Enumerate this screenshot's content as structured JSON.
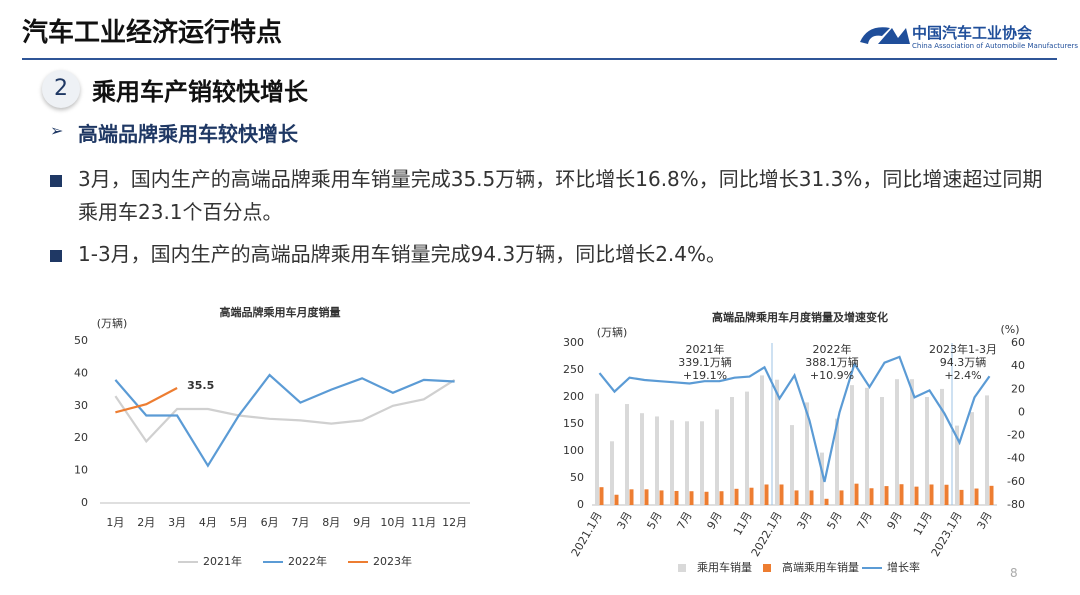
{
  "header": {
    "title": "汽车工业经济运行特点",
    "logo_cn": "中国汽车工业协会",
    "logo_en": "China Association of Automobile Manufacturers"
  },
  "section": {
    "number": "2",
    "title": "乘用车产销较快增长"
  },
  "subheading": "高端品牌乘用车较快增长",
  "bullets": [
    "3月，国内生产的高端品牌乘用车销量完成35.5万辆，环比增长16.8%，同比增长31.3%，同比增速超过同期乘用车23.1个百分点。",
    "1-3月，国内生产的高端品牌乘用车销量完成94.3万辆，同比增长2.4%。"
  ],
  "page_number": "8",
  "chart_data": [
    {
      "type": "line",
      "title": "高端品牌乘用车月度销量",
      "y_label": "(万辆)",
      "categories": [
        "1月",
        "2月",
        "3月",
        "4月",
        "5月",
        "6月",
        "7月",
        "8月",
        "9月",
        "10月",
        "11月",
        "12月"
      ],
      "series": [
        {
          "name": "2021年",
          "color": "#d0d0d0",
          "values": [
            33,
            19,
            29,
            29,
            27,
            26,
            25.5,
            24.5,
            25.5,
            30,
            32,
            38
          ]
        },
        {
          "name": "2022年",
          "color": "#5b9bd5",
          "values": [
            38,
            27,
            27,
            11.5,
            27,
            39.5,
            31,
            35,
            38.5,
            34,
            38,
            37.5
          ]
        },
        {
          "name": "2023年",
          "color": "#ed7d31",
          "values": [
            28,
            30.5,
            35.5,
            null,
            null,
            null,
            null,
            null,
            null,
            null,
            null,
            null
          ]
        }
      ],
      "ylim": [
        0,
        50
      ],
      "yticks": [
        0,
        10,
        20,
        30,
        40,
        50
      ],
      "legend": "bottom"
    },
    {
      "type": "bar",
      "title": "高端品牌乘用车月度销量及增速变化",
      "y_label": "(万辆)",
      "y2_label": "(%)",
      "categories": [
        "2021.1月",
        null,
        "3月",
        null,
        "5月",
        null,
        "7月",
        null,
        "9月",
        null,
        "11月",
        null,
        "2022.1月",
        null,
        "3月",
        null,
        "5月",
        null,
        "7月",
        null,
        "9月",
        null,
        "11月",
        null,
        "2023.1月",
        null,
        "3月"
      ],
      "series": [
        {
          "name": "乘用车销量",
          "color": "#d9d9d9",
          "values": [
            206,
            118,
            187,
            170,
            164,
            157,
            155,
            155,
            177,
            200,
            210,
            240,
            232,
            148,
            190,
            97,
            160,
            222,
            217,
            200,
            233,
            233,
            200,
            215,
            147,
            172,
            203
          ]
        },
        {
          "name": "高端乘用车销量",
          "color": "#ed7d31",
          "values": [
            33,
            19,
            29,
            29,
            27,
            26,
            25.5,
            24.5,
            25.5,
            30,
            32,
            38,
            38,
            27,
            27,
            11.5,
            27,
            39.5,
            31,
            35,
            38.5,
            34,
            38,
            37.5,
            28,
            30.5,
            35.5
          ]
        },
        {
          "name": "增长率",
          "color": "#5b9bd5",
          "type": "line",
          "axis": "y2",
          "values": [
            34,
            18,
            30,
            28,
            27,
            26,
            25,
            27,
            27,
            30,
            31,
            39,
            12,
            32,
            -7,
            -60,
            0,
            42,
            22,
            43,
            48,
            13,
            19,
            -1,
            -26,
            13,
            31.3
          ]
        }
      ],
      "ylim": [
        0,
        300
      ],
      "yticks": [
        0,
        50,
        100,
        150,
        200,
        250,
        300
      ],
      "y2lim": [
        -80,
        60
      ],
      "y2ticks": [
        -80,
        -60,
        -40,
        -20,
        0,
        20,
        40,
        60
      ],
      "annotations": [
        {
          "lines": [
            "2021年",
            "339.1万辆",
            "+19.1%"
          ]
        },
        {
          "lines": [
            "2022年",
            "388.1万辆",
            "+10.9%"
          ]
        },
        {
          "lines": [
            "2023年1-3月",
            "94.3万辆",
            "+2.4%"
          ]
        }
      ],
      "legend": "bottom"
    }
  ]
}
